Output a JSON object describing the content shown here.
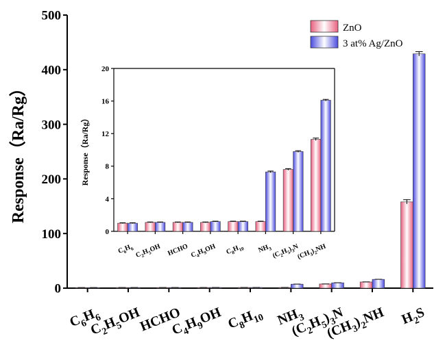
{
  "chart_data": [
    {
      "type": "bar",
      "role": "main",
      "ylabel": "Response（Ra/Rg）",
      "ylim": [
        0,
        500
      ],
      "yticks": [
        0,
        100,
        200,
        300,
        400,
        500
      ],
      "grid": false,
      "legend_position": "top-right",
      "categories": [
        {
          "base": "C",
          "parts": [
            [
              "C",
              ""
            ],
            [
              "6",
              "sub"
            ],
            [
              "H",
              ""
            ],
            [
              "6",
              "sub"
            ]
          ]
        },
        {
          "base": "C2H5OH",
          "parts": [
            [
              "C",
              ""
            ],
            [
              "2",
              "sub"
            ],
            [
              "H",
              ""
            ],
            [
              "5",
              "sub"
            ],
            [
              "OH",
              ""
            ]
          ]
        },
        {
          "base": "HCHO",
          "parts": [
            [
              "HCHO",
              ""
            ]
          ]
        },
        {
          "base": "C4H9OH",
          "parts": [
            [
              "C",
              ""
            ],
            [
              "4",
              "sub"
            ],
            [
              "H",
              ""
            ],
            [
              "9",
              "sub"
            ],
            [
              "OH",
              ""
            ]
          ]
        },
        {
          "base": "C8H10",
          "parts": [
            [
              "C",
              ""
            ],
            [
              "8",
              "sub"
            ],
            [
              "H",
              ""
            ],
            [
              "10",
              "sub"
            ]
          ]
        },
        {
          "base": "NH3",
          "parts": [
            [
              "NH",
              ""
            ],
            [
              "3",
              "sub"
            ]
          ]
        },
        {
          "base": "(C2H5)3N",
          "parts": [
            [
              "(C",
              ""
            ],
            [
              "2",
              "sub"
            ],
            [
              "H",
              ""
            ],
            [
              "5",
              "sub"
            ],
            [
              ")",
              ""
            ],
            [
              "3",
              "sub"
            ],
            [
              "N",
              ""
            ]
          ]
        },
        {
          "base": "(CH3)2NH",
          "parts": [
            [
              "(CH",
              ""
            ],
            [
              "3",
              "sub"
            ],
            [
              ")",
              ""
            ],
            [
              "2",
              "sub"
            ],
            [
              "NH",
              ""
            ]
          ]
        },
        {
          "base": "H2S",
          "parts": [
            [
              "H",
              ""
            ],
            [
              "2",
              "sub"
            ],
            [
              "S",
              ""
            ]
          ]
        }
      ],
      "series": [
        {
          "name": "ZnO",
          "color": "#e8607f",
          "values": [
            1.0,
            1.1,
            1.1,
            1.1,
            1.2,
            1.2,
            7.6,
            11.3,
            158
          ],
          "errors": [
            0.05,
            0.05,
            0.05,
            0.05,
            0.05,
            0.05,
            0.1,
            0.15,
            4
          ]
        },
        {
          "name": "3 at% Ag/ZnO",
          "color": "#4a4adf",
          "values": [
            1.0,
            1.1,
            1.1,
            1.2,
            1.2,
            7.3,
            9.8,
            16.1,
            429
          ],
          "errors": [
            0.05,
            0.05,
            0.05,
            0.05,
            0.05,
            0.1,
            0.1,
            0.1,
            4
          ]
        }
      ]
    },
    {
      "type": "bar",
      "role": "inset",
      "ylabel": "Response（Ra/Rg）",
      "ylim": [
        0,
        20
      ],
      "yticks": [
        0,
        4,
        8,
        12,
        16,
        20
      ],
      "grid": false,
      "categories": [
        {
          "parts": [
            [
              "C",
              ""
            ],
            [
              "6",
              "sub"
            ],
            [
              "H",
              ""
            ],
            [
              "6",
              "sub"
            ]
          ]
        },
        {
          "parts": [
            [
              "C",
              ""
            ],
            [
              "2",
              "sub"
            ],
            [
              "H",
              ""
            ],
            [
              "5",
              "sub"
            ],
            [
              "OH",
              ""
            ]
          ]
        },
        {
          "parts": [
            [
              "HCHO",
              ""
            ]
          ]
        },
        {
          "parts": [
            [
              "C",
              ""
            ],
            [
              "4",
              "sub"
            ],
            [
              "H",
              ""
            ],
            [
              "9",
              "sub"
            ],
            [
              "OH",
              ""
            ]
          ]
        },
        {
          "parts": [
            [
              "C",
              ""
            ],
            [
              "8",
              "sub"
            ],
            [
              "H",
              ""
            ],
            [
              "10",
              "sub"
            ]
          ]
        },
        {
          "parts": [
            [
              "NH",
              ""
            ],
            [
              "3",
              "sub"
            ]
          ]
        },
        {
          "parts": [
            [
              "(C",
              ""
            ],
            [
              "2",
              "sub"
            ],
            [
              "H",
              ""
            ],
            [
              "5",
              "sub"
            ],
            [
              ")",
              ""
            ],
            [
              "3",
              "sub"
            ],
            [
              "N",
              ""
            ]
          ]
        },
        {
          "parts": [
            [
              "(CH",
              ""
            ],
            [
              "3",
              "sub"
            ],
            [
              ")",
              ""
            ],
            [
              "2",
              "sub"
            ],
            [
              "NH",
              ""
            ]
          ]
        }
      ],
      "series": [
        {
          "name": "ZnO",
          "color": "#e8607f",
          "values": [
            1.0,
            1.1,
            1.1,
            1.1,
            1.2,
            1.2,
            7.6,
            11.3
          ],
          "errors": [
            0.05,
            0.05,
            0.05,
            0.05,
            0.05,
            0.05,
            0.1,
            0.15
          ]
        },
        {
          "name": "3 at% Ag/ZnO",
          "color": "#4a4adf",
          "values": [
            1.0,
            1.1,
            1.1,
            1.2,
            1.2,
            7.3,
            9.8,
            16.1
          ],
          "errors": [
            0.05,
            0.05,
            0.05,
            0.05,
            0.05,
            0.1,
            0.1,
            0.1
          ]
        }
      ]
    }
  ]
}
